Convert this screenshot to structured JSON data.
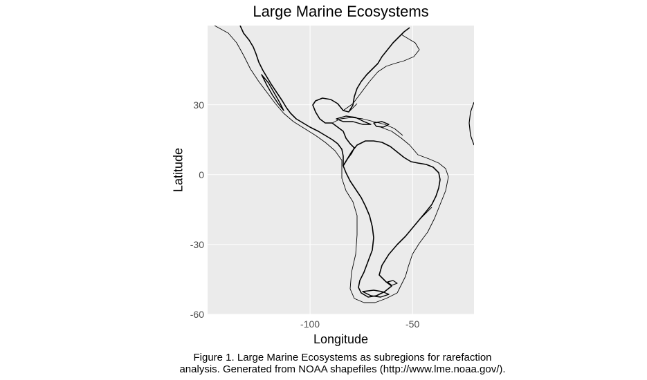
{
  "chart_data": {
    "type": "map",
    "title": "Large Marine Ecosystems",
    "xlabel": "Longitude",
    "ylabel": "Latitude",
    "xlim": [
      -150,
      -20
    ],
    "ylim": [
      -60,
      64
    ],
    "x_ticks": [
      {
        "value": -100,
        "label": "-100"
      },
      {
        "value": -50,
        "label": "-50"
      }
    ],
    "y_ticks": [
      {
        "value": 30,
        "label": "30"
      },
      {
        "value": 0,
        "label": "0"
      },
      {
        "value": -30,
        "label": "-30"
      },
      {
        "value": -60,
        "label": "-60"
      }
    ],
    "grid": true,
    "background_color": "#ebebeb",
    "gridline_color": "#ffffff",
    "line_color": "#000000"
  },
  "caption": {
    "line1": "Figure 1. Large Marine Ecosystems as subregions for rarefaction",
    "line2": "analysis. Generated from NOAA shapefiles (http://www.lme.noaa.gov/)."
  }
}
